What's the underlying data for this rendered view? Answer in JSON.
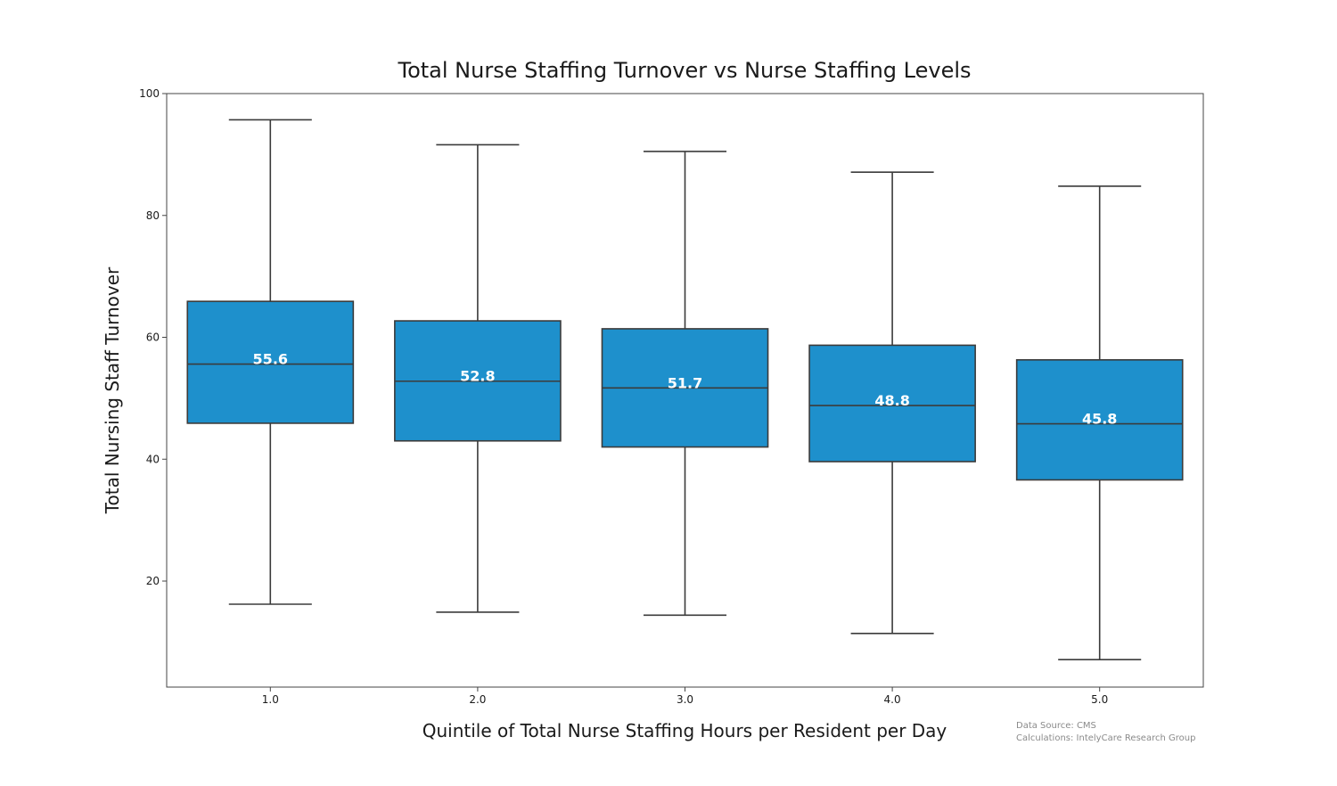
{
  "chart_data": {
    "type": "box",
    "title": "Total Nurse Staffing Turnover vs Nurse Staffing Levels",
    "xlabel": "Quintile of Total Nurse Staffing Hours per Resident per Day",
    "ylabel": "Total Nursing Staff Turnover",
    "categories": [
      "1.0",
      "2.0",
      "3.0",
      "4.0",
      "5.0"
    ],
    "boxes": [
      {
        "category": "1.0",
        "whisker_low": 16.2,
        "q1": 45.9,
        "median": 55.6,
        "q3": 65.9,
        "whisker_high": 95.7,
        "label": "55.6"
      },
      {
        "category": "2.0",
        "whisker_low": 14.9,
        "q1": 43.0,
        "median": 52.8,
        "q3": 62.7,
        "whisker_high": 91.6,
        "label": "52.8"
      },
      {
        "category": "3.0",
        "whisker_low": 14.4,
        "q1": 42.0,
        "median": 51.7,
        "q3": 61.4,
        "whisker_high": 90.5,
        "label": "51.7"
      },
      {
        "category": "4.0",
        "whisker_low": 11.4,
        "q1": 39.6,
        "median": 48.8,
        "q3": 58.7,
        "whisker_high": 87.1,
        "label": "48.8"
      },
      {
        "category": "5.0",
        "whisker_low": 7.1,
        "q1": 36.6,
        "median": 45.8,
        "q3": 56.3,
        "whisker_high": 84.8,
        "label": "45.8"
      }
    ],
    "yticks": [
      20,
      40,
      60,
      80,
      100
    ],
    "ylim": [
      2.6,
      100
    ],
    "grid": false,
    "colors": {
      "box_fill": "#1e90cc",
      "box_edge": "#3b3b3b",
      "whisker": "#3b3b3b"
    },
    "annotations": [
      "Data Source: CMS",
      "Calculations: IntelyCare Research Group"
    ]
  }
}
